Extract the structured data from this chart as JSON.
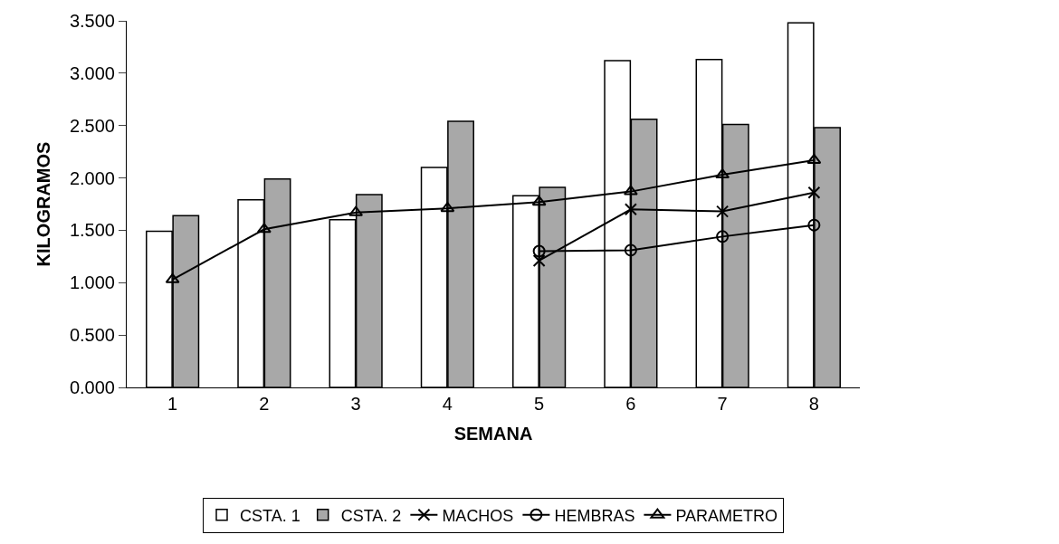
{
  "chart_data": {
    "type": "bar",
    "xlabel": "SEMANA",
    "ylabel": "KILOGRAMOS",
    "categories": [
      "1",
      "2",
      "3",
      "4",
      "5",
      "6",
      "7",
      "8"
    ],
    "series": [
      {
        "name": "CSTA. 1",
        "color": "#ffffff",
        "values": [
          1.49,
          1.79,
          1.6,
          2.1,
          1.83,
          3.12,
          3.13,
          3.48
        ]
      },
      {
        "name": "CSTA. 2",
        "color": "#a8a8a8",
        "values": [
          1.64,
          1.99,
          1.84,
          2.54,
          1.91,
          2.56,
          2.51,
          2.48
        ]
      },
      {
        "name": "MACHOS",
        "type": "line",
        "marker": "cross",
        "color": "#000000",
        "values": [
          null,
          null,
          null,
          null,
          1.21,
          1.7,
          1.68,
          1.86
        ]
      },
      {
        "name": "HEMBRAS",
        "type": "line",
        "marker": "circle",
        "color": "#000000",
        "values": [
          null,
          null,
          null,
          null,
          1.3,
          1.31,
          1.44,
          1.55
        ]
      },
      {
        "name": "PARAMETRO",
        "type": "line",
        "marker": "triangle",
        "color": "#000000",
        "values": [
          1.03,
          1.51,
          1.67,
          1.71,
          1.77,
          1.87,
          2.03,
          2.17
        ]
      }
    ],
    "ylim": [
      0,
      3.5
    ],
    "yticks": [
      {
        "value": 0,
        "label": "0.000"
      },
      {
        "value": 0.5,
        "label": "0.500"
      },
      {
        "value": 1,
        "label": "1.000"
      },
      {
        "value": 1.5,
        "label": "1.500"
      },
      {
        "value": 2,
        "label": "2.000"
      },
      {
        "value": 2.5,
        "label": "2.500"
      },
      {
        "value": 3,
        "label": "3.000"
      },
      {
        "value": 3.5,
        "label": "3.500"
      }
    ],
    "grid": false,
    "legend": "bottom"
  }
}
